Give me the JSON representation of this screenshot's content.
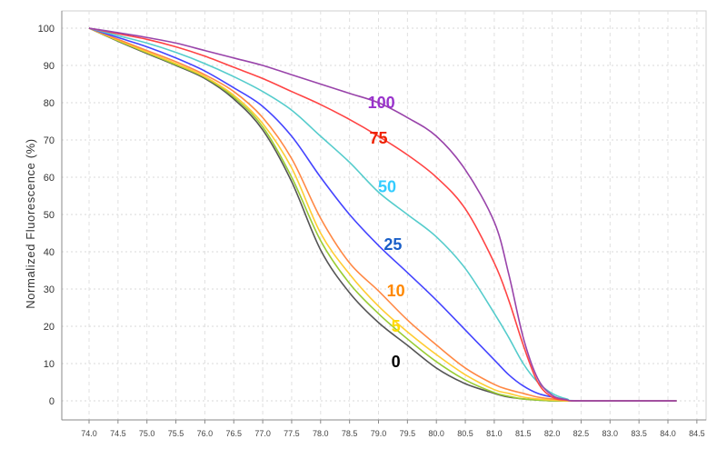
{
  "chart_data": {
    "type": "line",
    "title": "",
    "xlabel": "",
    "ylabel": "Normalized Fluorescence (%)",
    "xlim": [
      73.5,
      84.6
    ],
    "ylim": [
      -5,
      102
    ],
    "grid": true,
    "x_ticks": [
      "74.0",
      "74.5",
      "75.0",
      "75.5",
      "76.0",
      "76.5",
      "77.0",
      "77.5",
      "78.0",
      "78.5",
      "79.0",
      "79.5",
      "80.0",
      "80.5",
      "81.0",
      "81.5",
      "82.0",
      "82.5",
      "83.0",
      "83.5",
      "84.0",
      "84.5"
    ],
    "y_ticks": [
      "0",
      "10",
      "20",
      "30",
      "40",
      "50",
      "60",
      "70",
      "80",
      "90",
      "100"
    ],
    "x": [
      74,
      74.5,
      75,
      75.5,
      76,
      76.5,
      77,
      77.5,
      78,
      78.5,
      79,
      79.5,
      80,
      80.5,
      81,
      81.25,
      81.5,
      81.75,
      82,
      82.25,
      82.5,
      84.15
    ],
    "series": [
      {
        "name": "0",
        "color": "#555555",
        "values": [
          100,
          96.5,
          93.2,
          90,
          86.5,
          81,
          72.7,
          58.8,
          40.5,
          29,
          21,
          14.9,
          8.8,
          4.6,
          2,
          1,
          0.5,
          0.2,
          0,
          0,
          0,
          0
        ]
      },
      {
        "color": "#99cc33",
        "values": [
          100,
          96.6,
          93.4,
          90.2,
          86.8,
          81.5,
          73.5,
          60,
          43,
          31.5,
          23.4,
          16.6,
          10.5,
          5.6,
          2.2,
          1.2,
          0.5,
          0.2,
          0,
          0,
          0,
          0
        ]
      },
      {
        "name": "5",
        "color": "#ffcc33",
        "values": [
          100,
          96.8,
          93.6,
          90.5,
          87,
          82,
          74.4,
          62.5,
          45,
          34,
          25.4,
          18.5,
          12.4,
          7,
          3,
          2,
          1,
          0.5,
          0.2,
          0,
          0,
          0
        ]
      },
      {
        "name": "10",
        "color": "#ff8844",
        "values": [
          100,
          97,
          94,
          91,
          87.5,
          83,
          76,
          65,
          49,
          37,
          29.5,
          21.7,
          15,
          8.8,
          4.4,
          3,
          2,
          1,
          0.5,
          0.1,
          0,
          0
        ]
      },
      {
        "name": "25",
        "color": "#4444ff",
        "values": [
          100,
          97.5,
          95,
          92,
          88.5,
          84,
          79,
          71,
          60,
          50,
          41.7,
          34.4,
          27,
          19,
          11,
          7,
          4,
          2,
          1,
          0.3,
          0,
          0
        ]
      },
      {
        "name": "50",
        "color": "#55cccc",
        "values": [
          100,
          98,
          96,
          93.5,
          90.5,
          87,
          83,
          78,
          71,
          64,
          56,
          50,
          44,
          35.5,
          23.5,
          17,
          10,
          5,
          2,
          0.5,
          0,
          0
        ]
      },
      {
        "name": "75",
        "color": "#ff4444",
        "values": [
          100,
          98.5,
          97,
          95,
          92.5,
          89.5,
          86.5,
          83,
          79.5,
          75.5,
          71,
          66,
          60,
          51.5,
          37,
          27,
          15,
          5,
          1,
          0.2,
          0,
          0
        ]
      },
      {
        "name": "100",
        "color": "#9944aa",
        "values": [
          100,
          98.8,
          97.5,
          96,
          94,
          92,
          90,
          87.5,
          85,
          82.5,
          80,
          76,
          71,
          62,
          48,
          34,
          17,
          6,
          1.5,
          0.3,
          0,
          0
        ]
      }
    ],
    "annotations": [
      {
        "text": "100",
        "x": 79.05,
        "y": 80,
        "color": "#9933cc"
      },
      {
        "text": "75",
        "x": 79.0,
        "y": 70.5,
        "color": "#ee2200"
      },
      {
        "text": "50",
        "x": 79.15,
        "y": 57.5,
        "color": "#33ccff"
      },
      {
        "text": "25",
        "x": 79.25,
        "y": 42,
        "color": "#1a5fc8"
      },
      {
        "text": "10",
        "x": 79.3,
        "y": 29.5,
        "color": "#ff8800"
      },
      {
        "text": "5",
        "x": 79.3,
        "y": 20,
        "color": "#ffdd00"
      },
      {
        "text": "0",
        "x": 79.3,
        "y": 10.5,
        "color": "#000000"
      }
    ]
  }
}
